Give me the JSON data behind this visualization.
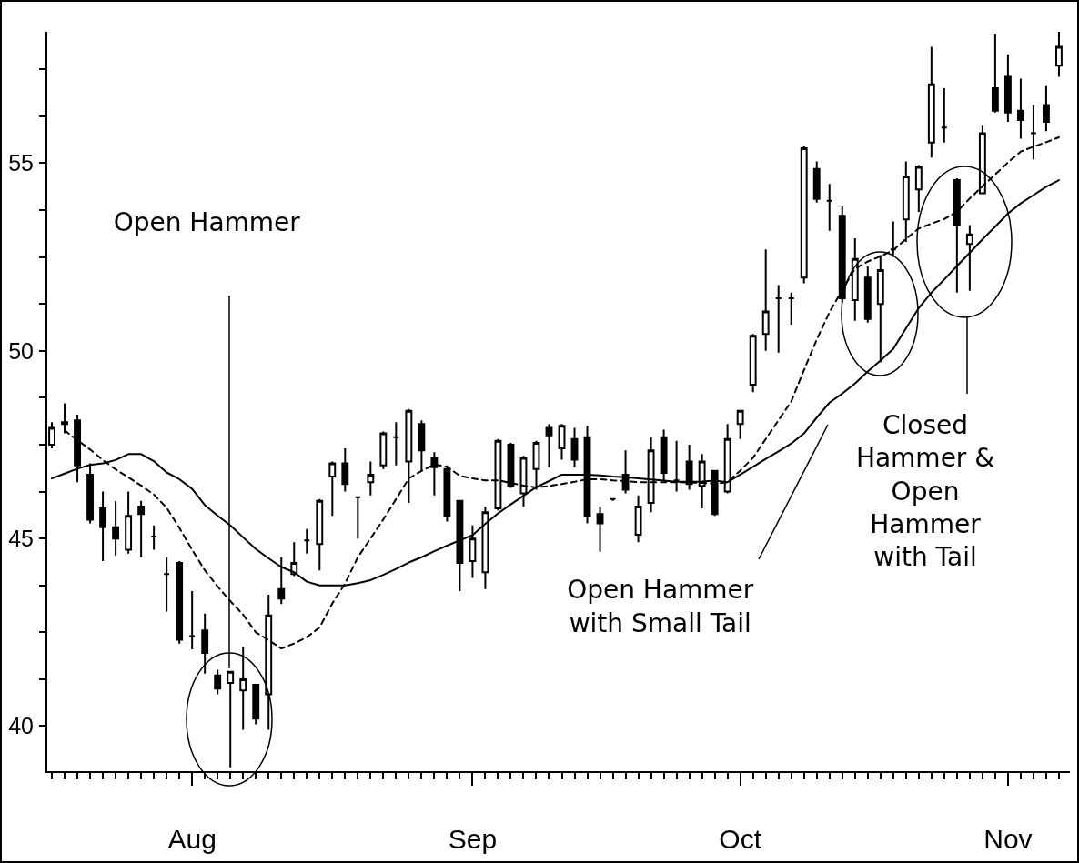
{
  "chart_data": {
    "type": "candlestick",
    "color": "#000000",
    "categories": [
      null,
      null,
      null,
      null,
      null,
      null,
      null,
      null,
      null,
      null,
      null,
      "Aug",
      null,
      null,
      null,
      null,
      null,
      null,
      null,
      null,
      null,
      null,
      null,
      null,
      null,
      null,
      null,
      null,
      null,
      null,
      null,
      null,
      null,
      "Sep",
      null,
      null,
      null,
      null,
      null,
      null,
      null,
      null,
      null,
      null,
      null,
      null,
      null,
      null,
      null,
      null,
      null,
      null,
      null,
      null,
      "Oct",
      null,
      null,
      null,
      null,
      null,
      null,
      null,
      null,
      null,
      null,
      null,
      null,
      null,
      null,
      null,
      null,
      null,
      null,
      null,
      null,
      "Nov",
      null,
      null,
      null,
      null
    ],
    "ohlc": [
      [
        47.5,
        48.1,
        47.4,
        47.95
      ],
      [
        48.1,
        48.6,
        47.8,
        48.05
      ],
      [
        48.15,
        48.3,
        46.5,
        46.95
      ],
      [
        46.7,
        47.0,
        45.4,
        45.5
      ],
      [
        45.8,
        46.25,
        44.4,
        45.3
      ],
      [
        45.3,
        46.0,
        44.55,
        45.0
      ],
      [
        44.7,
        46.25,
        44.6,
        45.6
      ],
      [
        45.85,
        46.0,
        44.5,
        45.65
      ],
      [
        45.05,
        45.35,
        44.7,
        45.05
      ],
      [
        44.05,
        44.5,
        43.05,
        44.05
      ],
      [
        44.35,
        44.4,
        42.2,
        42.3
      ],
      [
        42.4,
        43.6,
        42.05,
        42.4
      ],
      [
        42.55,
        43.0,
        41.4,
        41.95
      ],
      [
        41.35,
        41.5,
        40.85,
        41.0
      ],
      [
        41.15,
        41.45,
        38.9,
        41.45
      ],
      [
        40.95,
        42.1,
        39.9,
        41.25
      ],
      [
        41.1,
        41.1,
        40.05,
        40.2
      ],
      [
        40.85,
        43.5,
        39.9,
        42.95
      ],
      [
        43.65,
        44.5,
        43.25,
        43.4
      ],
      [
        44.05,
        44.9,
        44.0,
        44.35
      ],
      [
        44.95,
        45.25,
        44.6,
        44.95
      ],
      [
        44.85,
        46.05,
        44.15,
        46.0
      ],
      [
        46.65,
        47.05,
        45.6,
        47.0
      ],
      [
        47.0,
        47.4,
        46.25,
        46.45
      ],
      [
        46.1,
        46.1,
        45.0,
        46.1
      ],
      [
        46.5,
        47.05,
        46.15,
        46.7
      ],
      [
        46.95,
        47.85,
        46.85,
        47.8
      ],
      [
        47.7,
        48.1,
        46.95,
        47.7
      ],
      [
        47.05,
        48.45,
        45.95,
        48.4
      ],
      [
        48.05,
        48.15,
        46.8,
        47.35
      ],
      [
        47.15,
        47.3,
        46.15,
        46.9
      ],
      [
        46.85,
        46.95,
        45.45,
        45.6
      ],
      [
        46.0,
        46.0,
        43.6,
        44.35
      ],
      [
        44.4,
        45.35,
        43.95,
        45.0
      ],
      [
        44.1,
        45.85,
        43.65,
        45.7
      ],
      [
        45.8,
        47.65,
        45.75,
        47.6
      ],
      [
        47.5,
        47.55,
        46.35,
        46.4
      ],
      [
        46.2,
        47.2,
        45.85,
        47.15
      ],
      [
        46.85,
        47.6,
        46.3,
        47.55
      ],
      [
        47.95,
        48.05,
        46.9,
        47.75
      ],
      [
        47.4,
        48.05,
        47.1,
        48.0
      ],
      [
        47.65,
        47.95,
        46.9,
        47.1
      ],
      [
        47.7,
        48.0,
        45.4,
        45.6
      ],
      [
        45.65,
        45.85,
        44.65,
        45.4
      ],
      [
        46.05,
        46.05,
        46.0,
        46.05
      ],
      [
        46.7,
        47.35,
        46.2,
        46.3
      ],
      [
        45.1,
        46.15,
        44.9,
        45.85
      ],
      [
        45.95,
        47.7,
        45.7,
        47.35
      ],
      [
        47.7,
        47.9,
        46.55,
        46.75
      ],
      [
        46.55,
        47.6,
        46.25,
        46.55
      ],
      [
        47.05,
        47.5,
        46.3,
        46.45
      ],
      [
        46.4,
        47.25,
        45.8,
        47.05
      ],
      [
        46.8,
        46.8,
        45.6,
        45.65
      ],
      [
        46.25,
        48.05,
        46.2,
        47.65
      ],
      [
        48.05,
        48.4,
        47.65,
        48.4
      ],
      [
        49.1,
        50.45,
        48.9,
        50.4
      ],
      [
        50.45,
        52.7,
        50.0,
        51.05
      ],
      [
        51.4,
        51.75,
        49.95,
        51.4
      ],
      [
        51.4,
        51.55,
        50.7,
        51.4
      ],
      [
        51.95,
        55.45,
        51.8,
        55.4
      ],
      [
        54.85,
        55.05,
        53.95,
        54.05
      ],
      [
        54.0,
        54.45,
        53.2,
        54.0
      ],
      [
        53.6,
        53.85,
        51.3,
        51.4
      ],
      [
        51.35,
        53.0,
        50.8,
        52.45
      ],
      [
        51.95,
        52.25,
        50.75,
        50.85
      ],
      [
        51.25,
        52.55,
        49.7,
        52.15
      ],
      [
        52.7,
        53.45,
        52.5,
        52.7
      ],
      [
        53.5,
        55.05,
        52.9,
        54.65
      ],
      [
        54.3,
        54.95,
        53.7,
        54.9
      ],
      [
        55.55,
        58.1,
        55.15,
        57.1
      ],
      [
        55.95,
        57.0,
        55.55,
        55.95
      ],
      [
        54.55,
        54.6,
        51.55,
        53.35
      ],
      [
        52.85,
        53.35,
        51.6,
        53.1
      ],
      [
        54.2,
        56.0,
        54.2,
        55.8
      ],
      [
        57.0,
        58.45,
        56.35,
        56.4
      ],
      [
        57.3,
        57.9,
        56.1,
        56.35
      ],
      [
        56.4,
        57.25,
        55.65,
        56.15
      ],
      [
        55.8,
        56.55,
        55.1,
        55.8
      ],
      [
        56.55,
        57.05,
        55.85,
        56.1
      ],
      [
        57.6,
        58.5,
        57.3,
        58.1
      ]
    ],
    "series": [
      {
        "type": "line",
        "color": "#000000",
        "line_style": "solid",
        "values": [
          46.6,
          46.73,
          46.86,
          46.96,
          47.0,
          47.09,
          47.25,
          47.25,
          47.06,
          46.76,
          46.58,
          46.32,
          45.89,
          45.61,
          45.35,
          45.03,
          44.72,
          44.47,
          44.24,
          44.1,
          43.85,
          43.75,
          43.75,
          43.75,
          43.81,
          43.89,
          44.03,
          44.19,
          44.36,
          44.5,
          44.66,
          44.81,
          44.95,
          45.09,
          45.39,
          45.67,
          45.91,
          46.14,
          46.37,
          46.53,
          46.7,
          46.7,
          46.7,
          46.68,
          46.65,
          46.63,
          46.6,
          46.57,
          46.54,
          46.51,
          46.51,
          46.52,
          46.54,
          46.5,
          46.7,
          46.91,
          47.12,
          47.32,
          47.53,
          47.8,
          48.22,
          48.62,
          48.86,
          49.13,
          49.45,
          49.74,
          50.05,
          50.6,
          51.14,
          51.55,
          51.9,
          52.26,
          52.61,
          52.97,
          53.31,
          53.66,
          53.93,
          54.15,
          54.37,
          54.55
        ]
      },
      {
        "type": "line",
        "color": "#000000",
        "line_style": "dashed",
        "values": [
          null,
          47.88,
          47.62,
          47.37,
          47.09,
          46.84,
          46.63,
          46.41,
          46.17,
          45.82,
          45.28,
          44.7,
          44.15,
          43.72,
          43.33,
          42.97,
          42.5,
          42.29,
          42.07,
          42.2,
          42.37,
          42.63,
          43.27,
          43.8,
          44.5,
          45.0,
          45.51,
          46.05,
          46.6,
          46.8,
          46.97,
          46.91,
          46.67,
          46.6,
          46.55,
          46.55,
          46.48,
          46.41,
          46.36,
          46.4,
          46.45,
          46.51,
          46.58,
          46.58,
          46.55,
          46.53,
          46.5,
          46.5,
          46.5,
          46.5,
          46.49,
          46.48,
          46.46,
          46.5,
          46.81,
          47.15,
          47.65,
          48.15,
          48.65,
          49.49,
          50.3,
          51.03,
          51.62,
          52.19,
          52.38,
          52.52,
          52.68,
          52.98,
          53.26,
          53.39,
          53.51,
          53.71,
          54.06,
          54.38,
          54.7,
          55.02,
          55.31,
          55.44,
          55.56,
          55.69
        ]
      }
    ],
    "ylim": [
      38.8,
      58.5
    ],
    "yticks": [
      40,
      {
        "value": 41.25,
        "label": null
      },
      {
        "value": 42.5,
        "label": null
      },
      {
        "value": 43.75,
        "label": null
      },
      45,
      {
        "value": 46.25,
        "label": null
      },
      {
        "value": 47.5,
        "label": null
      },
      {
        "value": 48.75,
        "label": null
      },
      50,
      {
        "value": 51.25,
        "label": null
      },
      {
        "value": 52.5,
        "label": null
      },
      {
        "value": 53.75,
        "label": null
      },
      55,
      {
        "value": 56.25,
        "label": null
      },
      {
        "value": 57.5,
        "label": null
      }
    ],
    "annotations": [
      "Open Hammer",
      "Open Hammer\nwith Small Tail",
      "Closed\nHammer &\nOpen\nHammer\nwith Tail"
    ]
  }
}
